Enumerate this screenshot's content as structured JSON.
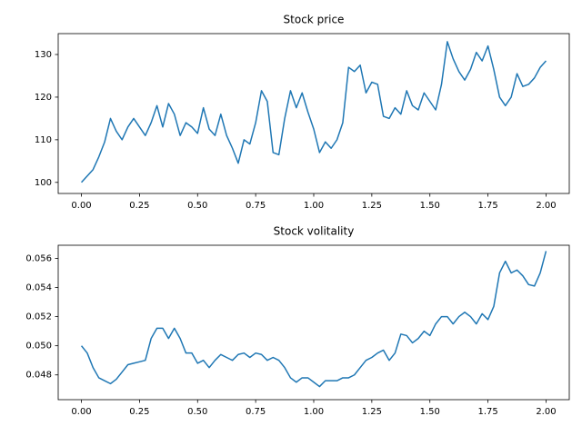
{
  "chart_data": [
    {
      "type": "line",
      "title": "Stock price",
      "color": "#1f77b4",
      "x": [
        0,
        0.025,
        0.05,
        0.075,
        0.1,
        0.125,
        0.15,
        0.175,
        0.2,
        0.225,
        0.25,
        0.275,
        0.3,
        0.325,
        0.35,
        0.375,
        0.4,
        0.425,
        0.45,
        0.475,
        0.5,
        0.525,
        0.55,
        0.575,
        0.6,
        0.625,
        0.65,
        0.675,
        0.7,
        0.725,
        0.75,
        0.775,
        0.8,
        0.825,
        0.85,
        0.875,
        0.9,
        0.925,
        0.95,
        0.975,
        1,
        1.025,
        1.05,
        1.075,
        1.1,
        1.125,
        1.15,
        1.175,
        1.2,
        1.225,
        1.25,
        1.275,
        1.3,
        1.325,
        1.35,
        1.375,
        1.4,
        1.425,
        1.45,
        1.475,
        1.5,
        1.525,
        1.55,
        1.575,
        1.6,
        1.625,
        1.65,
        1.675,
        1.7,
        1.725,
        1.75,
        1.775,
        1.8,
        1.825,
        1.85,
        1.875,
        1.9,
        1.925,
        1.95,
        1.975,
        2
      ],
      "values": [
        100,
        101.5,
        103,
        106,
        109.5,
        115,
        112,
        110,
        113,
        115,
        113,
        111,
        114,
        118,
        113,
        118.5,
        116,
        111,
        114,
        113,
        111.5,
        117.5,
        112.5,
        111,
        116,
        111,
        108,
        104.5,
        110,
        109,
        114,
        121.5,
        119,
        107,
        106.5,
        115,
        121.5,
        117.5,
        121,
        116.5,
        112.5,
        107,
        109.5,
        108,
        110,
        114,
        127,
        126,
        127.5,
        121,
        123.5,
        123,
        115.5,
        115,
        117.5,
        116,
        121.5,
        118,
        117,
        121,
        119,
        117,
        123,
        133,
        129,
        126,
        124,
        126.5,
        130.5,
        128.5,
        132,
        126.5,
        120,
        118,
        120,
        125.5,
        122.5,
        123,
        124.5,
        127,
        128.5
      ],
      "xlim": [
        -0.1,
        2.1
      ],
      "ylim": [
        97.4,
        134.9
      ],
      "xticks": [
        {
          "value": 0,
          "label": "0.00"
        },
        0.25,
        {
          "value": 0.5,
          "label": "0.50"
        },
        0.75,
        {
          "value": 1,
          "label": "1.00"
        },
        1.25,
        {
          "value": 1.5,
          "label": "1.50"
        },
        1.75,
        {
          "value": 2,
          "label": "2.00"
        }
      ],
      "yticks": [
        100,
        110,
        120,
        130
      ]
    },
    {
      "type": "line",
      "title": "Stock volitality",
      "color": "#1f77b4",
      "x": [
        0,
        0.025,
        0.05,
        0.075,
        0.1,
        0.125,
        0.15,
        0.175,
        0.2,
        0.225,
        0.25,
        0.275,
        0.3,
        0.325,
        0.35,
        0.375,
        0.4,
        0.425,
        0.45,
        0.475,
        0.5,
        0.525,
        0.55,
        0.575,
        0.6,
        0.625,
        0.65,
        0.675,
        0.7,
        0.725,
        0.75,
        0.775,
        0.8,
        0.825,
        0.85,
        0.875,
        0.9,
        0.925,
        0.95,
        0.975,
        1,
        1.025,
        1.05,
        1.075,
        1.1,
        1.125,
        1.15,
        1.175,
        1.2,
        1.225,
        1.25,
        1.275,
        1.3,
        1.325,
        1.35,
        1.375,
        1.4,
        1.425,
        1.45,
        1.475,
        1.5,
        1.525,
        1.55,
        1.575,
        1.6,
        1.625,
        1.65,
        1.675,
        1.7,
        1.725,
        1.75,
        1.775,
        1.8,
        1.825,
        1.85,
        1.875,
        1.9,
        1.925,
        1.95,
        1.975,
        2
      ],
      "values": [
        0.05,
        0.0495,
        0.0485,
        0.0478,
        0.0476,
        0.0474,
        0.0477,
        0.0482,
        0.0487,
        0.0488,
        0.0489,
        0.049,
        0.0505,
        0.0512,
        0.0512,
        0.0505,
        0.0512,
        0.0505,
        0.0495,
        0.0495,
        0.0488,
        0.049,
        0.0485,
        0.049,
        0.0494,
        0.0492,
        0.049,
        0.0494,
        0.0495,
        0.0492,
        0.0495,
        0.0494,
        0.049,
        0.0492,
        0.049,
        0.0485,
        0.0478,
        0.0475,
        0.0478,
        0.0478,
        0.0475,
        0.0472,
        0.0476,
        0.0476,
        0.0476,
        0.0478,
        0.0478,
        0.048,
        0.0485,
        0.049,
        0.0492,
        0.0495,
        0.0497,
        0.049,
        0.0495,
        0.0508,
        0.0507,
        0.0502,
        0.0505,
        0.051,
        0.0507,
        0.0515,
        0.052,
        0.052,
        0.0515,
        0.052,
        0.0523,
        0.052,
        0.0515,
        0.0522,
        0.0518,
        0.0527,
        0.055,
        0.0558,
        0.055,
        0.0552,
        0.0548,
        0.0542,
        0.0541,
        0.055,
        0.0565
      ],
      "xlim": [
        -0.1,
        2.1
      ],
      "ylim": [
        0.0463,
        0.0569
      ],
      "xticks": [
        {
          "value": 0,
          "label": "0.00"
        },
        0.25,
        {
          "value": 0.5,
          "label": "0.50"
        },
        0.75,
        {
          "value": 1,
          "label": "1.00"
        },
        1.25,
        {
          "value": 1.5,
          "label": "1.50"
        },
        1.75,
        {
          "value": 2,
          "label": "2.00"
        }
      ],
      "yticks": [
        0.048,
        {
          "value": 0.05,
          "label": "0.050"
        },
        0.052,
        0.054,
        0.056
      ]
    }
  ]
}
